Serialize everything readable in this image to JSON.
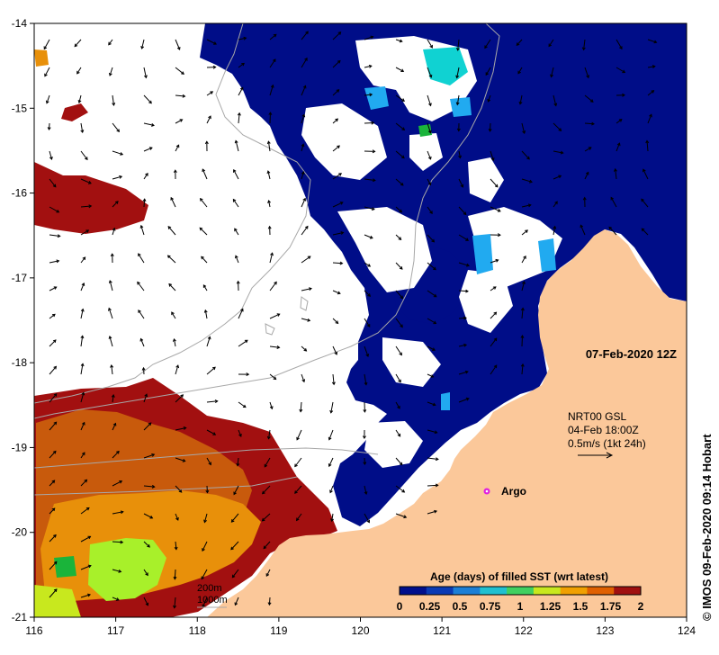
{
  "map": {
    "lon_ticks": [
      "116",
      "117",
      "118",
      "119",
      "120",
      "121",
      "122",
      "123",
      "124"
    ],
    "lat_ticks": [
      "-14",
      "-15",
      "-16",
      "-17",
      "-18",
      "-19",
      "-20",
      "-21"
    ],
    "lon_range": [
      116,
      124
    ],
    "lat_range": [
      -21,
      -14
    ],
    "date_label": "07-Feb-2020 12Z",
    "current_legend": {
      "line1": "NRT00 GSL",
      "line2": "04-Feb 18:00Z",
      "line3": "0.5m/s (1kt 24h)"
    },
    "argo_label": "Argo",
    "bathy_legend": {
      "contour1": "200m",
      "contour2": "1000m"
    },
    "colorbar": {
      "title": "Age (days) of filled SST (wrt latest)",
      "ticks": [
        "0",
        "0.25",
        "0.5",
        "0.75",
        "1",
        "1.25",
        "1.5",
        "1.75",
        "2"
      ],
      "colors": [
        "#000f8c",
        "#0a3ab4",
        "#1c7fd6",
        "#20c0d0",
        "#40d060",
        "#c8e81e",
        "#f0a000",
        "#e06000",
        "#a01010"
      ]
    },
    "credit": "© IMOS 09-Feb-2020 09:14 Hobart",
    "colors": {
      "land": "#fbc89a",
      "age0": "#000d88",
      "cyan": "#10d2d2",
      "ltblue": "#21aaf0",
      "red": "#a21010",
      "darkorange": "#c85a0c",
      "orange": "#e8900a",
      "lime": "#a8f02a",
      "green": "#1ab43a",
      "argo": "#e020e0"
    }
  }
}
